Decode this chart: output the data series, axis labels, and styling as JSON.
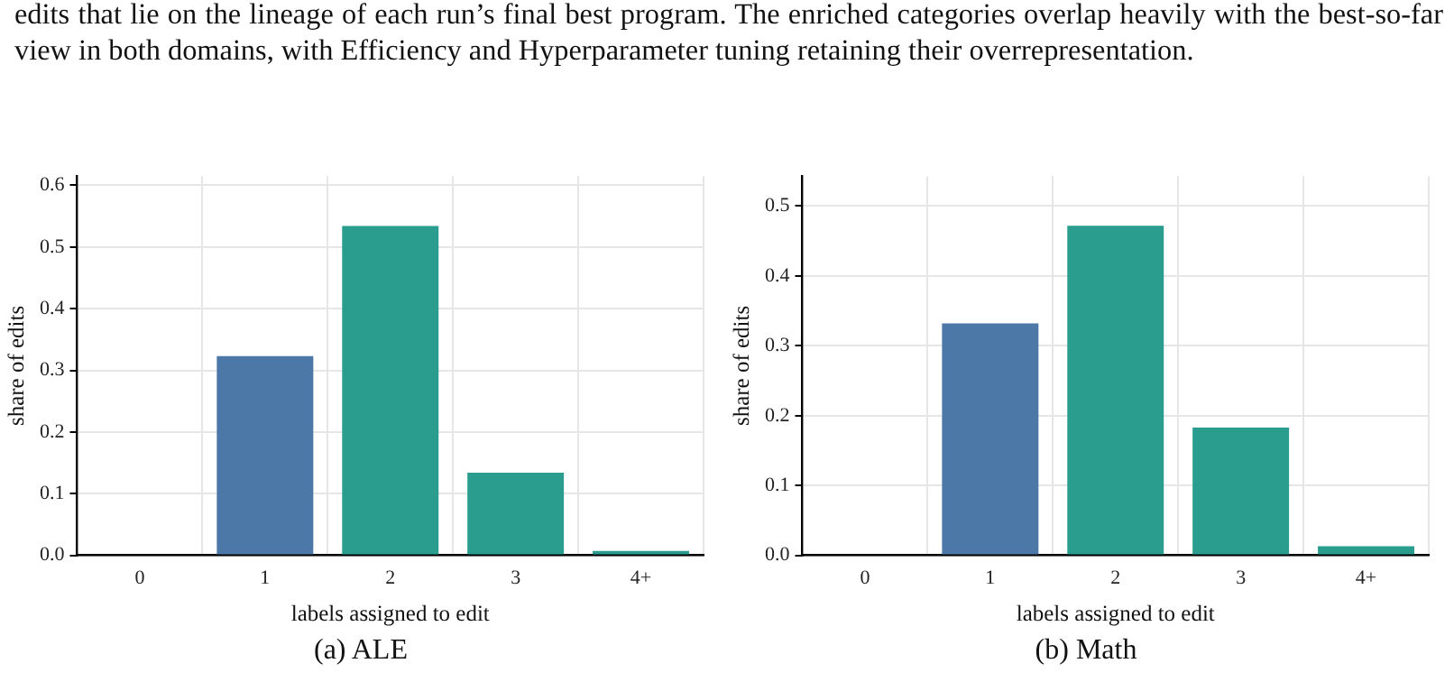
{
  "chart_data": [
    {
      "type": "other",
      "annotations": [
        "edits that lie on the lineage of each run’s final best program. The enriched categories overlap heavily with the best-so-far view in both domains, with Efficiency and Hyperparameter tuning retaining their overrepresentation."
      ]
    },
    {
      "type": "bar",
      "xlabel": "labels assigned to edit",
      "ylabel": "share of edits",
      "categories": [
        "0",
        "1",
        "2",
        "3",
        "4+"
      ],
      "values": [
        0,
        0.323,
        0.534,
        0.134,
        0.007
      ],
      "colors": [
        "#4c78a8",
        "#4c78a8",
        "#2a9d8f",
        "#2a9d8f",
        "#2a9d8f"
      ],
      "ylim": [
        0,
        0.615
      ],
      "yticks": [
        {
          "value": 0,
          "label": "0.0"
        },
        0.1,
        0.2,
        0.3,
        0.4,
        0.5,
        0.6
      ],
      "grid": true,
      "annotations": [
        "(a) ALE"
      ]
    },
    {
      "type": "bar",
      "xlabel": "labels assigned to edit",
      "ylabel": "share of edits",
      "categories": [
        "0",
        "1",
        "2",
        "3",
        "4+"
      ],
      "values": [
        0,
        0.332,
        0.472,
        0.183,
        0.013
      ],
      "colors": [
        "#4c78a8",
        "#4c78a8",
        "#2a9d8f",
        "#2a9d8f",
        "#2a9d8f"
      ],
      "ylim": [
        0,
        0.543
      ],
      "yticks": [
        {
          "value": 0,
          "label": "0.0"
        },
        0.1,
        0.2,
        0.3,
        0.4,
        0.5
      ],
      "grid": true,
      "annotations": [
        "(b) Math"
      ]
    }
  ]
}
